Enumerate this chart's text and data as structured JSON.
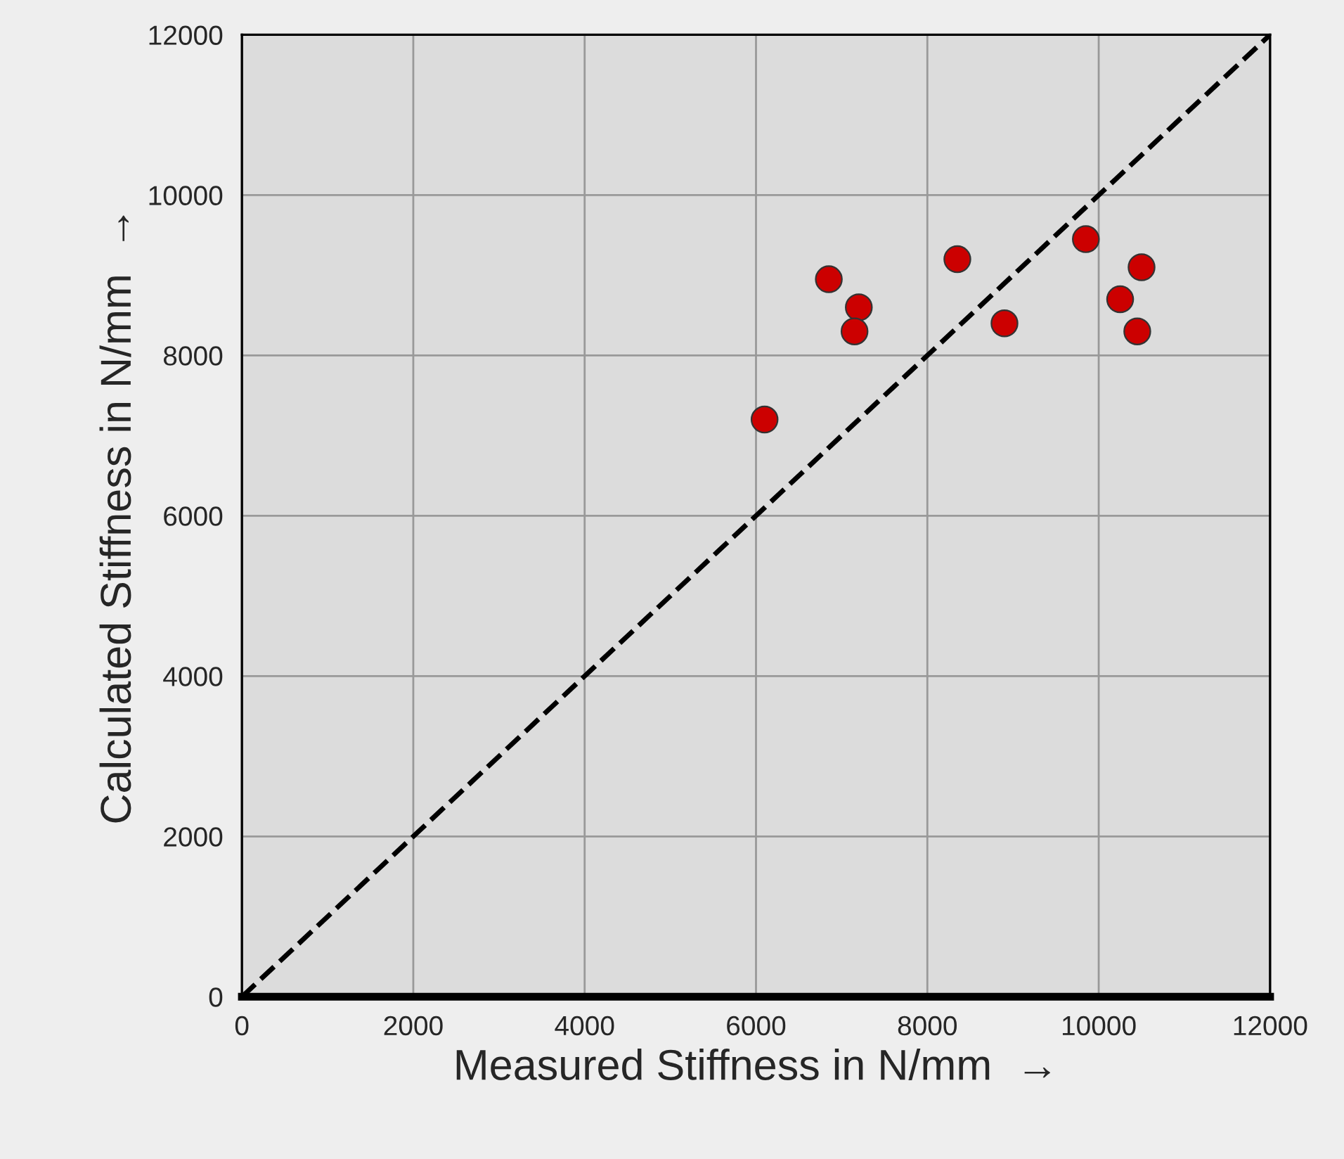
{
  "chart_data": {
    "type": "scatter",
    "xlabel": "Measured Stiffness in N/mm  →",
    "ylabel": "Calculated Stiffness in N/mm  →",
    "xlim": [
      0,
      12000
    ],
    "ylim": [
      0,
      12000
    ],
    "xticks": [
      0,
      2000,
      4000,
      6000,
      8000,
      10000,
      12000
    ],
    "yticks": [
      0,
      2000,
      4000,
      6000,
      8000,
      10000,
      12000
    ],
    "grid": true,
    "marker": "circle",
    "series": [
      {
        "color": "#cc0000",
        "x": [
          6100,
          6850,
          7200,
          7150,
          8350,
          8900,
          9850,
          10250,
          10500,
          10450
        ],
        "values": [
          7200,
          8950,
          8600,
          8300,
          9200,
          8400,
          9450,
          8700,
          9100,
          8300
        ]
      },
      {
        "type": "line",
        "color": "#000000",
        "line_style": "dashed",
        "marker": "none",
        "x": [
          0,
          12000
        ],
        "values": [
          0,
          12000
        ]
      }
    ]
  }
}
